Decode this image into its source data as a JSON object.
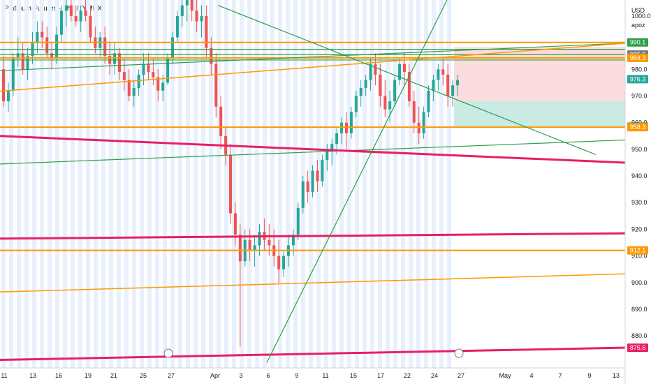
{
  "header": {
    "title": "Platinum Futures · 4h · NYMEX",
    "currency": "USD",
    "user": "apoz"
  },
  "colors": {
    "up": "#26a69a",
    "down": "#ef5350",
    "orange": "#ff9800",
    "green": "#2e9e48",
    "magenta": "#e91e63",
    "session": "#e8effd",
    "target_zone": "#c9ebe3",
    "stop_zone": "#fbdde0"
  },
  "chart_data": {
    "type": "candlestick",
    "ylim": [
      868,
      1006
    ],
    "y_ticks": [
      1000,
      990,
      980,
      970,
      960,
      950,
      940,
      930,
      920,
      910,
      900,
      890,
      880
    ],
    "x_tick_labels": [
      "11",
      "13",
      "16",
      "19",
      "21",
      "25",
      "27",
      "Apr",
      "3",
      "6",
      "9",
      "11",
      "15",
      "17",
      "22",
      "24",
      "27",
      "May",
      "4",
      "7",
      "9",
      "13"
    ],
    "price_labels": [
      {
        "value": 990.1,
        "text": "990.1",
        "color": "#2e9e48"
      },
      {
        "value": 985.5,
        "text": "985.5",
        "color": "#2e9e48"
      },
      {
        "value": 985.5,
        "text": "985.5",
        "color": "#787b86"
      },
      {
        "value": 984.3,
        "text": "984.3",
        "color": "#ff9800"
      },
      {
        "value": 976.3,
        "text": "976.3",
        "color": "#26a69a"
      },
      {
        "value": 958.5,
        "text": "958.5",
        "color": "#2e9e48"
      },
      {
        "value": 958.3,
        "text": "958.3",
        "color": "#ff9800"
      },
      {
        "value": 912.1,
        "text": "912.1",
        "color": "#ff9800"
      },
      {
        "value": 875.6,
        "text": "875.6",
        "color": "#e91e63"
      }
    ],
    "position": {
      "entry": 968.2,
      "target": 958.5,
      "stop": 988.4
    },
    "candles": [
      [
        980,
        985,
        966,
        968
      ],
      [
        968,
        975,
        964,
        972
      ],
      [
        972,
        986,
        970,
        984
      ],
      [
        984,
        992,
        981,
        986
      ],
      [
        986,
        990,
        978,
        980
      ],
      [
        980,
        988,
        976,
        985
      ],
      [
        985,
        994,
        982,
        990
      ],
      [
        990,
        998,
        986,
        994
      ],
      [
        994,
        998,
        988,
        992
      ],
      [
        992,
        996,
        984,
        986
      ],
      [
        986,
        990,
        980,
        984
      ],
      [
        984,
        996,
        982,
        993
      ],
      [
        993,
        1004,
        990,
        1002
      ],
      [
        1002,
        1008,
        996,
        1004
      ],
      [
        1004,
        1008,
        998,
        1000
      ],
      [
        1000,
        1004,
        996,
        998
      ],
      [
        998,
        1004,
        994,
        1002
      ],
      [
        1002,
        1006,
        998,
        1000
      ],
      [
        1000,
        1004,
        990,
        992
      ],
      [
        992,
        996,
        986,
        988
      ],
      [
        988,
        994,
        984,
        992
      ],
      [
        992,
        996,
        982,
        985
      ],
      [
        985,
        990,
        978,
        982
      ],
      [
        982,
        990,
        978,
        986
      ],
      [
        986,
        988,
        976,
        979
      ],
      [
        979,
        984,
        972,
        976
      ],
      [
        976,
        980,
        968,
        970
      ],
      [
        970,
        976,
        966,
        973
      ],
      [
        973,
        980,
        970,
        978
      ],
      [
        978,
        986,
        974,
        982
      ],
      [
        982,
        986,
        976,
        979
      ],
      [
        979,
        984,
        974,
        977
      ],
      [
        977,
        980,
        968,
        972
      ],
      [
        972,
        978,
        968,
        975
      ],
      [
        975,
        986,
        974,
        984
      ],
      [
        984,
        994,
        982,
        992
      ],
      [
        992,
        1002,
        990,
        1000
      ],
      [
        1000,
        1006,
        996,
        1004
      ],
      [
        1004,
        1010,
        998,
        1006
      ],
      [
        1006,
        1010,
        998,
        1002
      ],
      [
        1002,
        1006,
        994,
        998
      ],
      [
        998,
        1004,
        992,
        1000
      ],
      [
        1000,
        1004,
        984,
        988
      ],
      [
        988,
        992,
        978,
        982
      ],
      [
        982,
        986,
        962,
        966
      ],
      [
        966,
        970,
        950,
        955
      ],
      [
        955,
        958,
        944,
        948
      ],
      [
        948,
        952,
        922,
        926
      ],
      [
        926,
        930,
        914,
        918
      ],
      [
        918,
        922,
        876,
        908
      ],
      [
        908,
        920,
        906,
        916
      ],
      [
        916,
        920,
        908,
        912
      ],
      [
        912,
        918,
        906,
        914
      ],
      [
        914,
        922,
        910,
        919
      ],
      [
        919,
        924,
        912,
        916
      ],
      [
        916,
        922,
        910,
        914
      ],
      [
        914,
        920,
        906,
        910
      ],
      [
        910,
        916,
        900,
        905
      ],
      [
        905,
        912,
        902,
        910
      ],
      [
        910,
        918,
        906,
        914
      ],
      [
        914,
        920,
        910,
        918
      ],
      [
        918,
        930,
        916,
        928
      ],
      [
        928,
        940,
        926,
        938
      ],
      [
        938,
        942,
        930,
        934
      ],
      [
        934,
        944,
        932,
        942
      ],
      [
        942,
        946,
        934,
        938
      ],
      [
        938,
        948,
        936,
        946
      ],
      [
        946,
        952,
        942,
        950
      ],
      [
        950,
        954,
        944,
        952
      ],
      [
        952,
        958,
        948,
        956
      ],
      [
        956,
        962,
        952,
        960
      ],
      [
        960,
        964,
        950,
        956
      ],
      [
        956,
        966,
        954,
        964
      ],
      [
        964,
        972,
        962,
        970
      ],
      [
        970,
        976,
        966,
        973
      ],
      [
        973,
        978,
        970,
        976
      ],
      [
        976,
        984,
        972,
        982
      ],
      [
        982,
        986,
        974,
        978
      ],
      [
        978,
        982,
        966,
        970
      ],
      [
        970,
        976,
        962,
        965
      ],
      [
        965,
        972,
        960,
        968
      ],
      [
        968,
        978,
        966,
        976
      ],
      [
        976,
        984,
        974,
        982
      ],
      [
        982,
        986,
        974,
        979
      ],
      [
        979,
        982,
        966,
        968
      ],
      [
        968,
        972,
        956,
        960
      ],
      [
        960,
        966,
        952,
        956
      ],
      [
        956,
        966,
        954,
        964
      ],
      [
        964,
        974,
        962,
        972
      ],
      [
        972,
        978,
        968,
        976
      ],
      [
        976,
        982,
        972,
        980
      ],
      [
        980,
        984,
        974,
        978
      ],
      [
        978,
        982,
        966,
        970
      ],
      [
        970,
        976,
        966,
        974
      ],
      [
        974,
        978,
        970,
        976
      ]
    ],
    "lines": [
      {
        "color": "#ff9800",
        "x1": 0,
        "y1": 990.1,
        "x2": 895,
        "y2": 990.1,
        "w": 2
      },
      {
        "color": "#2e9e48",
        "x1": 0,
        "y1": 987.5,
        "x2": 895,
        "y2": 987.5,
        "w": 1.2
      },
      {
        "color": "#2e9e48",
        "x1": 0,
        "y1": 985.5,
        "x2": 895,
        "y2": 985.5,
        "w": 1.2
      },
      {
        "color": "#ff9800",
        "x1": 0,
        "y1": 984.3,
        "x2": 895,
        "y2": 984.3,
        "w": 2
      },
      {
        "color": "#2e9e48",
        "x1": 0,
        "y1": 983.5,
        "x2": 895,
        "y2": 983.5,
        "w": 1.2
      },
      {
        "color": "#ff9800",
        "x1": 0,
        "y1": 958.3,
        "x2": 895,
        "y2": 958.3,
        "w": 2
      },
      {
        "color": "#ff9800",
        "x1": 0,
        "y1": 912.1,
        "x2": 895,
        "y2": 912.1,
        "w": 2
      },
      {
        "color": "#2e9e48",
        "x1": 0,
        "y1": 979.5,
        "x2": 895,
        "y2": 989.8,
        "w": 1.2
      },
      {
        "color": "#ff9800",
        "x1": 0,
        "y1": 971.8,
        "x2": 895,
        "y2": 989.8,
        "w": 1.5
      },
      {
        "color": "#2e9e48",
        "x1": 0,
        "y1": 944.5,
        "x2": 895,
        "y2": 953.5,
        "w": 1.2
      },
      {
        "color": "#e91e63",
        "x1": 0,
        "y1": 955.0,
        "x2": 895,
        "y2": 945.0,
        "w": 3
      },
      {
        "color": "#e91e63",
        "x1": 0,
        "y1": 916.5,
        "x2": 895,
        "y2": 918.5,
        "w": 3
      },
      {
        "color": "#ff9800",
        "x1": 0,
        "y1": 896.5,
        "x2": 895,
        "y2": 903.3,
        "w": 1.5
      },
      {
        "color": "#e91e63",
        "x1": 0,
        "y1": 871.0,
        "x2": 895,
        "y2": 875.6,
        "w": 3
      },
      {
        "color": "#2e9e48",
        "x1": 312,
        "y1": 1004.0,
        "x2": 853,
        "y2": 948.0,
        "w": 1.2
      },
      {
        "color": "#2e9e48",
        "x1": 382,
        "y1": 870.0,
        "x2": 640,
        "y2": 1006.0,
        "w": 1.2
      }
    ]
  }
}
